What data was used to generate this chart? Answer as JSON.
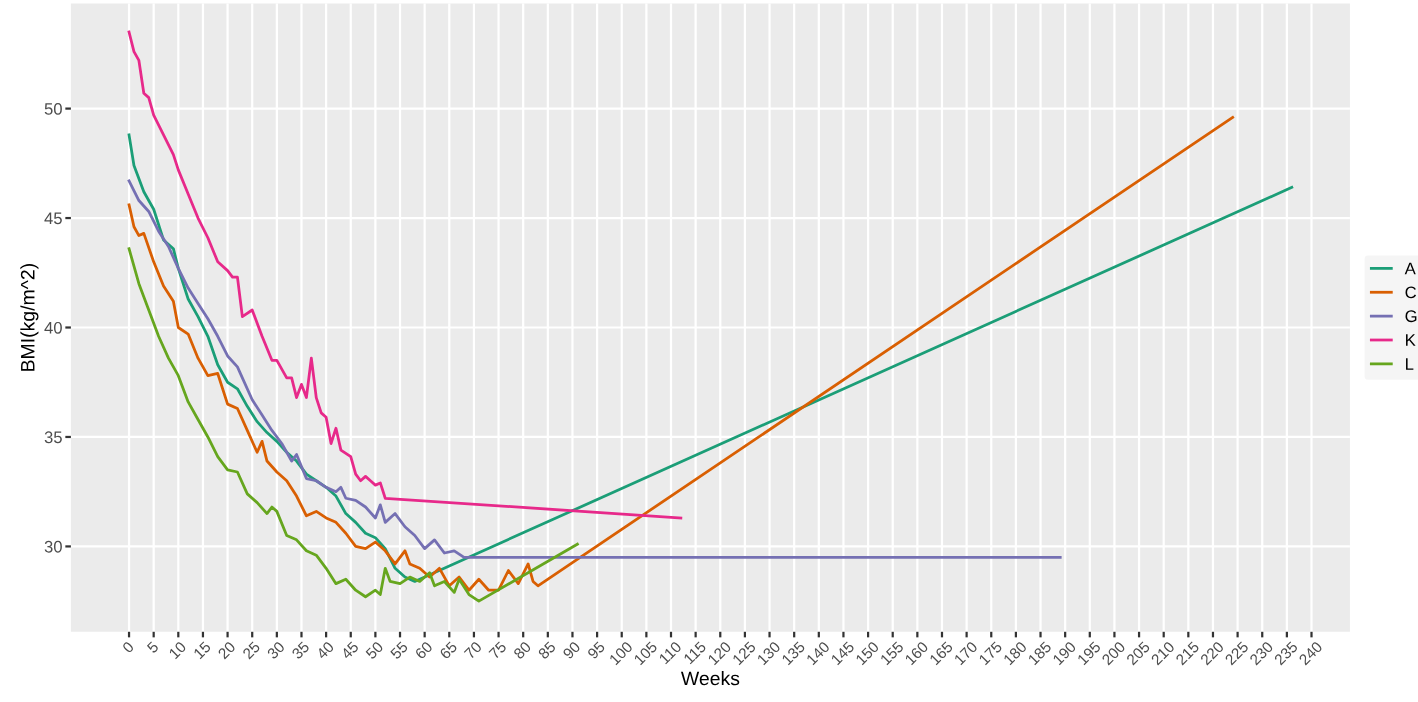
{
  "chart_data": {
    "type": "line",
    "xlabel": "Weeks",
    "ylabel": "BMI(kg/m^2)",
    "xlim": [
      -11.8,
      247.8
    ],
    "ylim": [
      26.1,
      54.8
    ],
    "xticks": [
      0,
      5,
      10,
      15,
      20,
      25,
      30,
      35,
      40,
      45,
      50,
      55,
      60,
      65,
      70,
      75,
      80,
      85,
      90,
      95,
      100,
      105,
      110,
      115,
      120,
      125,
      130,
      135,
      140,
      145,
      150,
      155,
      160,
      165,
      170,
      175,
      180,
      185,
      190,
      195,
      200,
      205,
      210,
      215,
      220,
      225,
      230,
      235,
      240
    ],
    "yticks": [
      30,
      35,
      40,
      45,
      50
    ],
    "grid": true,
    "legend": "right",
    "marker": "none",
    "line_style": "solid",
    "series": [
      {
        "name": "A",
        "color": "#1b9e77",
        "x": [
          0,
          1,
          3,
          5,
          7,
          9,
          10,
          12,
          14,
          16,
          18,
          20,
          22,
          24,
          26,
          28,
          30,
          32,
          34,
          36,
          38,
          40,
          42,
          44,
          46,
          48,
          50,
          52,
          54,
          56,
          58,
          59,
          236
        ],
        "values": [
          48.8,
          47.4,
          46.2,
          45.4,
          44.0,
          43.6,
          42.7,
          41.3,
          40.5,
          39.6,
          38.3,
          37.5,
          37.2,
          36.4,
          35.7,
          35.2,
          34.8,
          34.3,
          33.9,
          33.3,
          33.0,
          32.7,
          32.3,
          31.5,
          31.1,
          30.6,
          30.4,
          29.9,
          29.0,
          28.6,
          28.4,
          28.5,
          46.4
        ]
      },
      {
        "name": "C",
        "color": "#d95f02",
        "x": [
          0,
          1,
          2,
          3,
          5,
          7,
          9,
          10,
          12,
          14,
          16,
          18,
          20,
          22,
          24,
          26,
          27,
          28,
          30,
          32,
          34,
          36,
          38,
          40,
          42,
          44,
          46,
          48,
          50,
          52,
          54,
          56,
          57,
          59,
          61,
          63,
          65,
          67,
          69,
          71,
          73,
          75,
          77,
          79,
          81,
          82,
          83,
          224
        ],
        "values": [
          45.6,
          44.6,
          44.2,
          44.3,
          43.0,
          41.9,
          41.2,
          40.0,
          39.7,
          38.6,
          37.8,
          37.9,
          36.5,
          36.3,
          35.3,
          34.3,
          34.8,
          33.9,
          33.4,
          33.0,
          32.3,
          31.4,
          31.6,
          31.3,
          31.1,
          30.6,
          30.0,
          29.9,
          30.2,
          29.8,
          29.2,
          29.8,
          29.2,
          29.0,
          28.6,
          29.0,
          28.2,
          28.6,
          28.0,
          28.5,
          28.0,
          28.0,
          28.9,
          28.3,
          29.2,
          28.4,
          28.2,
          49.6
        ]
      },
      {
        "name": "G",
        "color": "#7570b3",
        "x": [
          0,
          2,
          4,
          6,
          8,
          10,
          12,
          14,
          16,
          18,
          20,
          22,
          23,
          25,
          27,
          29,
          31,
          33,
          34,
          36,
          38,
          40,
          42,
          43,
          44,
          46,
          48,
          50,
          51,
          52,
          54,
          56,
          58,
          60,
          62,
          64,
          66,
          68,
          189
        ],
        "values": [
          46.7,
          45.8,
          45.3,
          44.4,
          43.7,
          42.7,
          41.8,
          41.1,
          40.4,
          39.6,
          38.7,
          38.2,
          37.7,
          36.7,
          36.0,
          35.3,
          34.7,
          33.9,
          34.2,
          33.1,
          33.0,
          32.7,
          32.5,
          32.7,
          32.2,
          32.1,
          31.8,
          31.3,
          31.9,
          31.1,
          31.5,
          30.9,
          30.5,
          29.9,
          30.3,
          29.7,
          29.8,
          29.5,
          29.5
        ]
      },
      {
        "name": "K",
        "color": "#e7298a",
        "x": [
          0,
          1,
          2,
          3,
          4,
          5,
          7,
          9,
          10,
          12,
          14,
          16,
          18,
          20,
          21,
          22,
          23,
          25,
          27,
          29,
          30,
          32,
          33,
          34,
          35,
          36,
          37,
          38,
          39,
          40,
          41,
          42,
          43,
          45,
          46,
          47,
          48,
          49,
          50,
          51,
          52,
          112
        ],
        "values": [
          53.5,
          52.6,
          52.2,
          50.7,
          50.5,
          49.7,
          48.8,
          47.9,
          47.2,
          46.1,
          45.0,
          44.1,
          43.0,
          42.6,
          42.3,
          42.3,
          40.5,
          40.8,
          39.6,
          38.5,
          38.5,
          37.7,
          37.7,
          36.8,
          37.4,
          36.8,
          38.6,
          36.8,
          36.1,
          35.9,
          34.7,
          35.4,
          34.4,
          34.1,
          33.3,
          33.0,
          33.2,
          33.0,
          32.8,
          32.9,
          32.2,
          31.3
        ]
      },
      {
        "name": "L",
        "color": "#66a61e",
        "x": [
          0,
          2,
          4,
          6,
          8,
          10,
          12,
          14,
          16,
          18,
          20,
          22,
          24,
          26,
          28,
          29,
          30,
          32,
          34,
          36,
          38,
          40,
          42,
          44,
          46,
          48,
          50,
          51,
          52,
          53,
          55,
          57,
          59,
          61,
          62,
          64,
          66,
          67,
          69,
          71,
          91
        ],
        "values": [
          43.6,
          42.0,
          40.8,
          39.6,
          38.6,
          37.8,
          36.6,
          35.8,
          35.0,
          34.1,
          33.5,
          33.4,
          32.4,
          32.0,
          31.5,
          31.8,
          31.6,
          30.5,
          30.3,
          29.8,
          29.6,
          29.0,
          28.3,
          28.5,
          28.0,
          27.7,
          28.0,
          27.8,
          29.0,
          28.4,
          28.3,
          28.6,
          28.4,
          28.8,
          28.2,
          28.4,
          27.9,
          28.5,
          27.8,
          27.5,
          30.1
        ]
      }
    ]
  }
}
